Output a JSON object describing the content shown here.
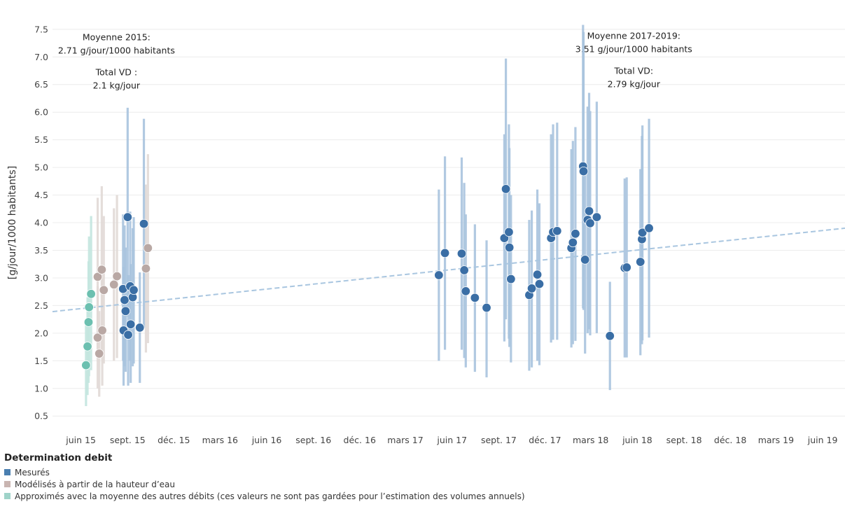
{
  "chart_data": {
    "type": "scatter",
    "ylabel": "[g/jour/1000 habitants]",
    "ylim": [
      0.3,
      7.65
    ],
    "yticks": [
      0.5,
      1.0,
      1.5,
      2.0,
      2.5,
      3.0,
      3.5,
      4.0,
      4.5,
      5.0,
      5.5,
      6.0,
      6.5,
      7.0,
      7.5
    ],
    "xlim": [
      "2015-04-06",
      "2019-07-15"
    ],
    "xticks": [
      {
        "date": "2015-06-01",
        "label": "juin 15"
      },
      {
        "date": "2015-09-01",
        "label": "sept. 15"
      },
      {
        "date": "2015-12-01",
        "label": "déc. 15"
      },
      {
        "date": "2016-03-01",
        "label": "mars 16"
      },
      {
        "date": "2016-06-01",
        "label": "juin 16"
      },
      {
        "date": "2016-09-01",
        "label": "sept. 16"
      },
      {
        "date": "2016-12-01",
        "label": "déc. 16"
      },
      {
        "date": "2017-03-01",
        "label": "mars 17"
      },
      {
        "date": "2017-06-01",
        "label": "juin 17"
      },
      {
        "date": "2017-09-01",
        "label": "sept. 17"
      },
      {
        "date": "2017-12-01",
        "label": "déc. 17"
      },
      {
        "date": "2018-03-01",
        "label": "mars 18"
      },
      {
        "date": "2018-06-01",
        "label": "juin 18"
      },
      {
        "date": "2018-09-01",
        "label": "sept. 18"
      },
      {
        "date": "2018-12-01",
        "label": "déc. 18"
      },
      {
        "date": "2019-03-01",
        "label": "mars 19"
      },
      {
        "date": "2019-06-01",
        "label": "juin 19"
      }
    ],
    "trendline": {
      "start": [
        "2015-04-06",
        2.39
      ],
      "end": [
        "2019-07-15",
        3.9
      ]
    },
    "grid": true,
    "legend": {
      "title": "Determination debit",
      "placement": "bottom-left",
      "entries": [
        {
          "label": "Mesurés",
          "color": "#4a7fb0"
        },
        {
          "label": "Modélisés à partir de la hauteur d’eau",
          "color": "#c9b5b1"
        },
        {
          "label": "Approximés avec la moyenne des autres débits (ces valeurs ne sont pas gardées pour l’estimation des volumes annuels)",
          "color": "#9fd3c9"
        }
      ]
    },
    "annotations": [
      {
        "lines": [
          "Moyenne 2015:",
          "2.71 g/jour/1000 habitants",
          "",
          "Total VD :",
          "2.1 kg/jour"
        ],
        "anchor": {
          "date": "2015-08-10",
          "y": 7.35
        }
      },
      {
        "lines": [
          "Moyenne 2017-2019:",
          "3.51 g/jour/1000 habitants",
          "",
          "Total VD:",
          "2.79 kg/jour"
        ],
        "anchor": {
          "date": "2018-05-25",
          "y": 7.38
        }
      }
    ],
    "series": [
      {
        "name": "Mesurés",
        "color": "#3a6ea5",
        "bar_color": "#a9c3de",
        "points": [
          {
            "x": "2015-08-23",
            "y": 2.8,
            "low": 1.5,
            "high": 4.15
          },
          {
            "x": "2015-08-24",
            "y": 2.05,
            "low": 1.05,
            "high": 3.2
          },
          {
            "x": "2015-08-26",
            "y": 2.6,
            "low": 1.4,
            "high": 3.95
          },
          {
            "x": "2015-08-28",
            "y": 2.4,
            "low": 1.3,
            "high": 3.55
          },
          {
            "x": "2015-09-01",
            "y": 4.1,
            "low": 2.3,
            "high": 6.08
          },
          {
            "x": "2015-09-02",
            "y": 1.97,
            "low": 1.05,
            "high": 3.05
          },
          {
            "x": "2015-09-06",
            "y": 2.85,
            "low": 1.5,
            "high": 4.2
          },
          {
            "x": "2015-09-07",
            "y": 2.16,
            "low": 1.1,
            "high": 3.25
          },
          {
            "x": "2015-09-11",
            "y": 2.65,
            "low": 1.4,
            "high": 3.9
          },
          {
            "x": "2015-09-13",
            "y": 2.78,
            "low": 1.45,
            "high": 4.1
          },
          {
            "x": "2015-09-25",
            "y": 2.1,
            "low": 1.1,
            "high": 3.1
          },
          {
            "x": "2015-10-03",
            "y": 3.98,
            "low": 2.1,
            "high": 5.88
          },
          {
            "x": "2017-05-06",
            "y": 3.05,
            "low": 1.5,
            "high": 4.6
          },
          {
            "x": "2017-05-18",
            "y": 3.45,
            "low": 1.7,
            "high": 5.2
          },
          {
            "x": "2017-06-20",
            "y": 3.44,
            "low": 1.7,
            "high": 5.18
          },
          {
            "x": "2017-06-25",
            "y": 3.14,
            "low": 1.55,
            "high": 4.72
          },
          {
            "x": "2017-06-28",
            "y": 2.76,
            "low": 1.38,
            "high": 4.15
          },
          {
            "x": "2017-07-16",
            "y": 2.64,
            "low": 1.3,
            "high": 3.97
          },
          {
            "x": "2017-08-08",
            "y": 2.46,
            "low": 1.2,
            "high": 3.68
          },
          {
            "x": "2017-09-12",
            "y": 3.72,
            "low": 1.85,
            "high": 5.6
          },
          {
            "x": "2017-09-15",
            "y": 4.61,
            "low": 2.25,
            "high": 6.97
          },
          {
            "x": "2017-09-21",
            "y": 3.83,
            "low": 1.9,
            "high": 5.78
          },
          {
            "x": "2017-09-22",
            "y": 3.55,
            "low": 1.75,
            "high": 5.35
          },
          {
            "x": "2017-09-25",
            "y": 2.98,
            "low": 1.47,
            "high": 4.5
          },
          {
            "x": "2017-10-31",
            "y": 2.69,
            "low": 1.32,
            "high": 4.05
          },
          {
            "x": "2017-11-05",
            "y": 2.81,
            "low": 1.38,
            "high": 4.22
          },
          {
            "x": "2017-11-16",
            "y": 3.06,
            "low": 1.5,
            "high": 4.6
          },
          {
            "x": "2017-11-20",
            "y": 2.89,
            "low": 1.42,
            "high": 4.35
          },
          {
            "x": "2017-12-13",
            "y": 3.72,
            "low": 1.83,
            "high": 5.6
          },
          {
            "x": "2017-12-17",
            "y": 3.83,
            "low": 1.88,
            "high": 5.78
          },
          {
            "x": "2017-12-25",
            "y": 3.85,
            "low": 1.88,
            "high": 5.81
          },
          {
            "x": "2018-01-22",
            "y": 3.54,
            "low": 1.74,
            "high": 5.33
          },
          {
            "x": "2018-01-25",
            "y": 3.64,
            "low": 1.8,
            "high": 5.48
          },
          {
            "x": "2018-01-30",
            "y": 3.8,
            "low": 1.86,
            "high": 5.73
          },
          {
            "x": "2018-02-14",
            "y": 5.02,
            "low": 2.45,
            "high": 7.58
          },
          {
            "x": "2018-02-15",
            "y": 4.93,
            "low": 2.42,
            "high": 7.45
          },
          {
            "x": "2018-02-18",
            "y": 3.33,
            "low": 1.63,
            "high": 5.02
          },
          {
            "x": "2018-02-23",
            "y": 4.05,
            "low": 2.0,
            "high": 6.1
          },
          {
            "x": "2018-02-26",
            "y": 4.21,
            "low": 2.07,
            "high": 6.35
          },
          {
            "x": "2018-02-28",
            "y": 3.99,
            "low": 1.96,
            "high": 6.02
          },
          {
            "x": "2018-03-13",
            "y": 4.1,
            "low": 2.0,
            "high": 6.19
          },
          {
            "x": "2018-04-08",
            "y": 1.95,
            "low": 0.97,
            "high": 2.93
          },
          {
            "x": "2018-05-07",
            "y": 3.18,
            "low": 1.56,
            "high": 4.8
          },
          {
            "x": "2018-05-11",
            "y": 3.19,
            "low": 1.56,
            "high": 4.82
          },
          {
            "x": "2018-06-07",
            "y": 3.29,
            "low": 1.6,
            "high": 4.97
          },
          {
            "x": "2018-06-10",
            "y": 3.7,
            "low": 1.8,
            "high": 5.57
          },
          {
            "x": "2018-06-11",
            "y": 3.82,
            "low": 1.87,
            "high": 5.76
          },
          {
            "x": "2018-06-24",
            "y": 3.9,
            "low": 1.92,
            "high": 5.88
          }
        ]
      },
      {
        "name": "Modélisés à partir de la hauteur d’eau",
        "color": "#b9a8a4",
        "bar_color": "#e1d9d6",
        "points": [
          {
            "x": "2015-07-04",
            "y": 3.02,
            "low": 1.6,
            "high": 4.45
          },
          {
            "x": "2015-07-04",
            "y": 1.92,
            "low": 1.0,
            "high": 2.85
          },
          {
            "x": "2015-07-07",
            "y": 1.63,
            "low": 0.85,
            "high": 2.4
          },
          {
            "x": "2015-07-12",
            "y": 3.15,
            "low": 1.65,
            "high": 4.66
          },
          {
            "x": "2015-07-13",
            "y": 2.05,
            "low": 1.05,
            "high": 3.0
          },
          {
            "x": "2015-07-16",
            "y": 2.78,
            "low": 1.45,
            "high": 4.12
          },
          {
            "x": "2015-08-05",
            "y": 2.88,
            "low": 1.5,
            "high": 4.26
          },
          {
            "x": "2015-08-11",
            "y": 3.03,
            "low": 1.55,
            "high": 4.5
          },
          {
            "x": "2015-10-07",
            "y": 3.17,
            "low": 1.65,
            "high": 4.69
          },
          {
            "x": "2015-10-11",
            "y": 3.54,
            "low": 1.82,
            "high": 5.24
          }
        ]
      },
      {
        "name": "Approximés avec la moyenne des autres débits (ces valeurs ne sont pas gardées pour l’estimation des volumes annuels)",
        "color": "#6cc0b0",
        "bar_color": "#c3e6df",
        "points": [
          {
            "x": "2015-06-11",
            "y": 1.42,
            "low": 0.68,
            "high": 2.15
          },
          {
            "x": "2015-06-14",
            "y": 1.76,
            "low": 0.88,
            "high": 2.65
          },
          {
            "x": "2015-06-16",
            "y": 2.2,
            "low": 1.1,
            "high": 3.3
          },
          {
            "x": "2015-06-17",
            "y": 2.47,
            "low": 1.22,
            "high": 3.75
          },
          {
            "x": "2015-06-21",
            "y": 2.71,
            "low": 1.33,
            "high": 4.12
          }
        ]
      }
    ]
  }
}
